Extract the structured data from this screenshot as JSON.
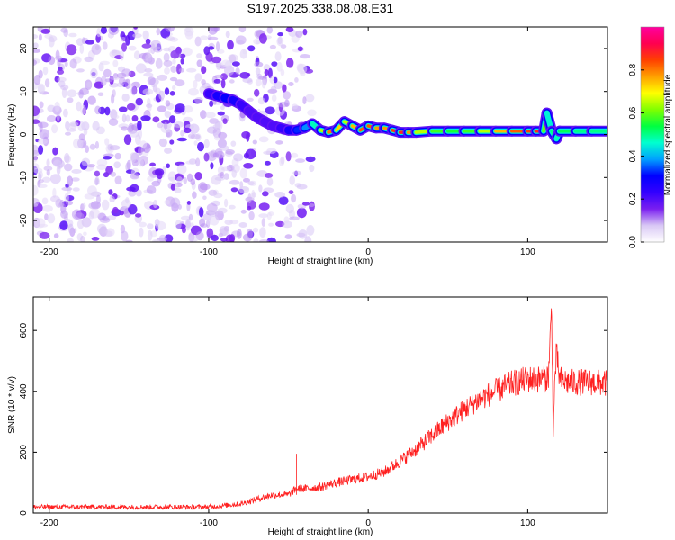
{
  "figure": {
    "title": "S197.2025.338.08.08.E31"
  },
  "chart_data": [
    {
      "type": "heatmap",
      "xlabel": "Height of straight line (km)",
      "ylabel": "Frequency (Hz)",
      "xlim": [
        -210,
        150
      ],
      "ylim": [
        -25,
        25
      ],
      "x_ticks": [
        -200,
        -100,
        0,
        100
      ],
      "y_ticks": [
        -20,
        -10,
        0,
        10,
        20
      ],
      "colorbar": {
        "label": "Normalized spectral amplitude",
        "range": [
          0,
          1
        ],
        "ticks": [
          "0.0",
          "0.2",
          "0.4",
          "0.6",
          "0.8"
        ],
        "colors": [
          "#ffffff",
          "#d9c8f5",
          "#7a1ff0",
          "#3300ff",
          "#0000ff",
          "#00a0ff",
          "#00ffd0",
          "#00ff40",
          "#80ff00",
          "#ffff00",
          "#ffa000",
          "#ff4000",
          "#ff0050",
          "#ff00a0"
        ]
      },
      "ridge": {
        "x": [
          -100,
          -95,
          -90,
          -85,
          -80,
          -75,
          -70,
          -65,
          -60,
          -55,
          -50,
          -45,
          -40,
          -35,
          -30,
          -25,
          -20,
          -15,
          -10,
          -5,
          0,
          5,
          10,
          15,
          20,
          25,
          30,
          40,
          50,
          60,
          70,
          80,
          90,
          100,
          105,
          110,
          112,
          115,
          118,
          120,
          130,
          140,
          150
        ],
        "y": [
          9.5,
          9,
          8.5,
          8,
          7,
          5.5,
          4,
          3,
          2,
          1.5,
          1,
          1,
          1.5,
          2.5,
          1,
          0.5,
          1,
          3,
          2,
          1,
          2,
          1.5,
          1.5,
          1,
          0.5,
          0.5,
          0.5,
          0.8,
          0.8,
          0.8,
          0.8,
          0.8,
          0.8,
          0.8,
          0.8,
          0.8,
          5,
          0.8,
          -1,
          0.8,
          0.8,
          0.8,
          0.8
        ],
        "amplitude": [
          0.2,
          0.25,
          0.3,
          0.3,
          0.25,
          0.2,
          0.2,
          0.2,
          0.2,
          0.2,
          0.25,
          0.3,
          0.35,
          0.4,
          0.55,
          0.75,
          0.85,
          0.6,
          0.7,
          0.8,
          0.85,
          0.8,
          0.75,
          0.8,
          0.9,
          0.85,
          0.7,
          0.6,
          0.55,
          0.55,
          0.6,
          0.7,
          0.8,
          0.85,
          0.85,
          0.9,
          0.3,
          0.6,
          0.4,
          0.55,
          0.5,
          0.5,
          0.5
        ]
      }
    },
    {
      "type": "line",
      "xlabel": "Height of straight line (km)",
      "ylabel": "SNR (10 * v/v)",
      "xlim": [
        -210,
        150
      ],
      "ylim": [
        0,
        710
      ],
      "x_ticks": [
        -200,
        -100,
        0,
        100
      ],
      "y_ticks": [
        0,
        200,
        400,
        600
      ],
      "color": "#ff2020",
      "series": [
        {
          "name": "SNR",
          "x": [
            -210,
            -200,
            -180,
            -160,
            -140,
            -120,
            -100,
            -90,
            -80,
            -70,
            -60,
            -50,
            -45,
            -40,
            -30,
            -20,
            -10,
            0,
            10,
            20,
            30,
            40,
            50,
            60,
            70,
            80,
            90,
            100,
            105,
            110,
            113,
            115,
            116,
            117,
            118,
            120,
            125,
            130,
            140,
            150
          ],
          "y": [
            20,
            20,
            20,
            20,
            20,
            20,
            20,
            25,
            30,
            45,
            60,
            60,
            80,
            80,
            85,
            100,
            110,
            120,
            135,
            170,
            210,
            255,
            300,
            340,
            375,
            400,
            425,
            440,
            440,
            440,
            450,
            670,
            260,
            440,
            520,
            440,
            430,
            430,
            430,
            425
          ]
        }
      ]
    }
  ]
}
